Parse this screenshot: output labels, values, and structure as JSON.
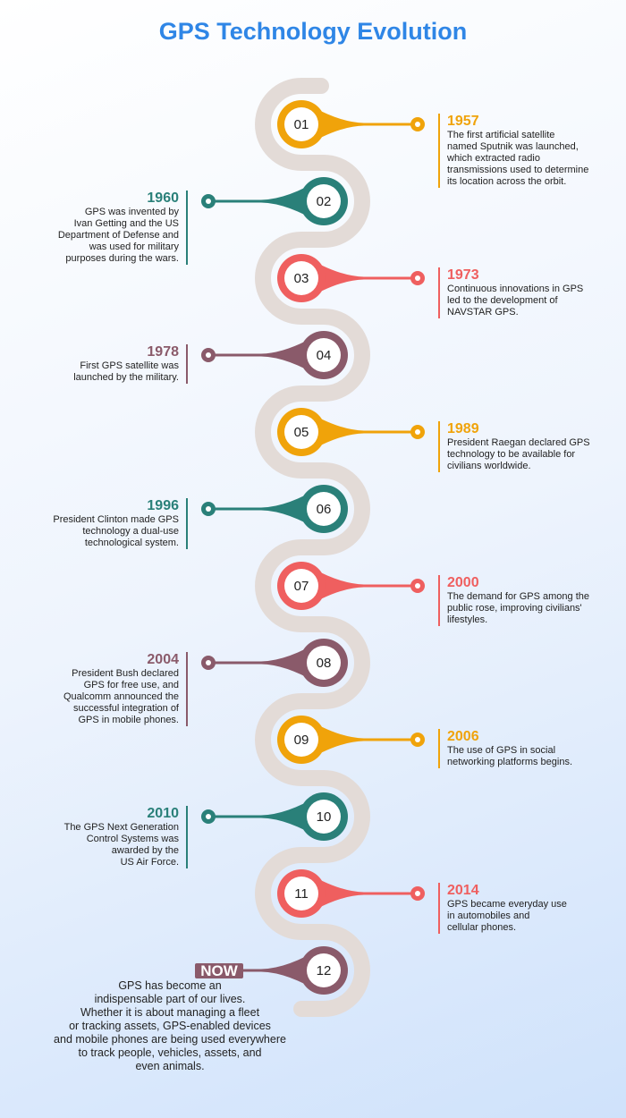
{
  "title": "GPS Technology Evolution",
  "items": [
    {
      "number": "01",
      "year": "1957",
      "color": "#f0a30a",
      "lines": [
        "The first artificial satellite",
        "named Sputnik was launched,",
        "which extracted radio",
        "transmissions used to determine",
        "its location across the orbit."
      ]
    },
    {
      "number": "02",
      "year": "1960",
      "color": "#2a8079",
      "lines": [
        "GPS was invented by",
        "Ivan Getting and the US",
        "Department of Defense and",
        "was used for military",
        "purposes during the wars."
      ]
    },
    {
      "number": "03",
      "year": "1973",
      "color": "#ef5f5f",
      "lines": [
        "Continuous innovations in GPS",
        "led to the development of",
        "NAVSTAR GPS."
      ]
    },
    {
      "number": "04",
      "year": "1978",
      "color": "#8a5a6a",
      "lines": [
        "First GPS satellite was",
        "launched by the military."
      ]
    },
    {
      "number": "05",
      "year": "1989",
      "color": "#f0a30a",
      "lines": [
        "President Raegan declared GPS",
        "technology to be available for",
        "civilians worldwide."
      ]
    },
    {
      "number": "06",
      "year": "1996",
      "color": "#2a8079",
      "lines": [
        "President Clinton made GPS",
        "technology a dual-use",
        "technological system."
      ]
    },
    {
      "number": "07",
      "year": "2000",
      "color": "#ef5f5f",
      "lines": [
        "The demand for GPS among the",
        "public rose, improving civilians'",
        "lifestyles."
      ]
    },
    {
      "number": "08",
      "year": "2004",
      "color": "#8a5a6a",
      "lines": [
        "President Bush declared",
        "GPS for free use, and",
        "Qualcomm announced the",
        "successful integration of",
        "GPS in mobile phones."
      ]
    },
    {
      "number": "09",
      "year": "2006",
      "color": "#f0a30a",
      "lines": [
        "The use of GPS in social",
        "networking platforms begins."
      ]
    },
    {
      "number": "10",
      "year": "2010",
      "color": "#2a8079",
      "lines": [
        "The GPS Next Generation",
        "Control Systems was",
        "awarded by the",
        "US Air Force."
      ]
    },
    {
      "number": "11",
      "year": "2014",
      "color": "#ef5f5f",
      "lines": [
        "GPS became everyday use",
        "in automobiles and",
        "cellular phones."
      ]
    },
    {
      "number": "12",
      "year": "NOW",
      "color": "#8a5a6a",
      "lines": [
        "GPS has become an",
        "indispensable part of our lives.",
        "Whether it is about managing a fleet",
        "or tracking assets, GPS-enabled devices",
        "and mobile phones are being used everywhere",
        "to track people, vehicles, assets, and",
        "even animals."
      ]
    }
  ]
}
